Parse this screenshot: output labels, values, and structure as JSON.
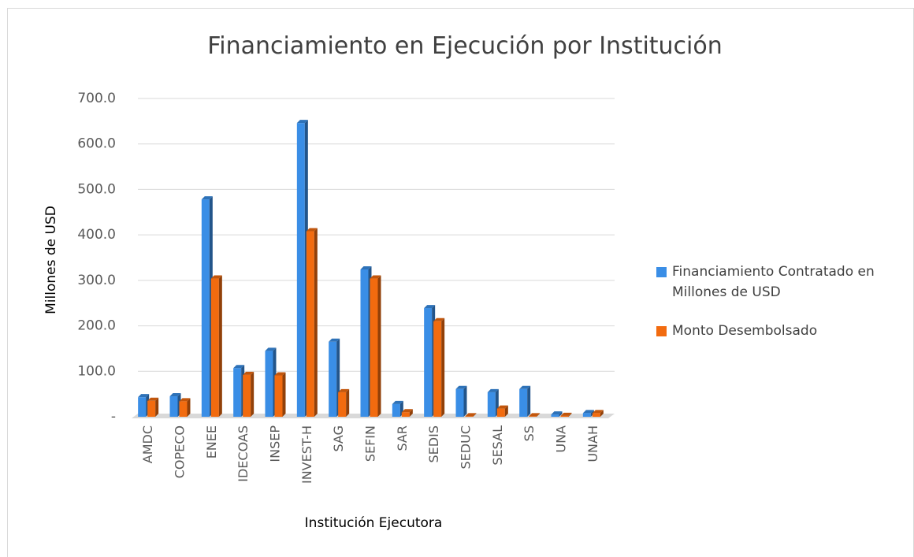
{
  "chart_data": {
    "type": "bar3d",
    "title": "Financiamiento en Ejecución por Institución",
    "x_label": "Institución Ejecutora",
    "y_label": "Millones de USD",
    "categories": [
      "AMDC",
      "COPECO",
      "ENEE",
      "IDECOAS",
      "INSEP",
      "INVEST-H",
      "SAG",
      "SEFIN",
      "SAR",
      "SEDIS",
      "SEDUC",
      "SESAL",
      "SS",
      "UNA",
      "UNAH"
    ],
    "series": [
      {
        "name": "Financiamiento Contratado en Millones de USD",
        "color": "#3a8ee6",
        "values": [
          43,
          45,
          478,
          107,
          145,
          646,
          165,
          324,
          28,
          239,
          61,
          54,
          61,
          5,
          8
        ]
      },
      {
        "name": "Monto Desembolsado",
        "color": "#f26b0f",
        "values": [
          35,
          34,
          304,
          92,
          91,
          408,
          54,
          304,
          10,
          210,
          1,
          18,
          1,
          2,
          8
        ]
      }
    ],
    "ylim": [
      0,
      700
    ],
    "yticks": [
      {
        "value": 0,
        "label": "-"
      },
      {
        "value": 100,
        "label": "100.0"
      },
      {
        "value": 200,
        "label": "200.0"
      },
      {
        "value": 300,
        "label": "300.0"
      },
      {
        "value": 400,
        "label": "400.0"
      },
      {
        "value": 500,
        "label": "500.0"
      },
      {
        "value": 600,
        "label": "600.0"
      },
      {
        "value": 700,
        "label": "700.0"
      }
    ],
    "grid": true,
    "legend": "right"
  }
}
